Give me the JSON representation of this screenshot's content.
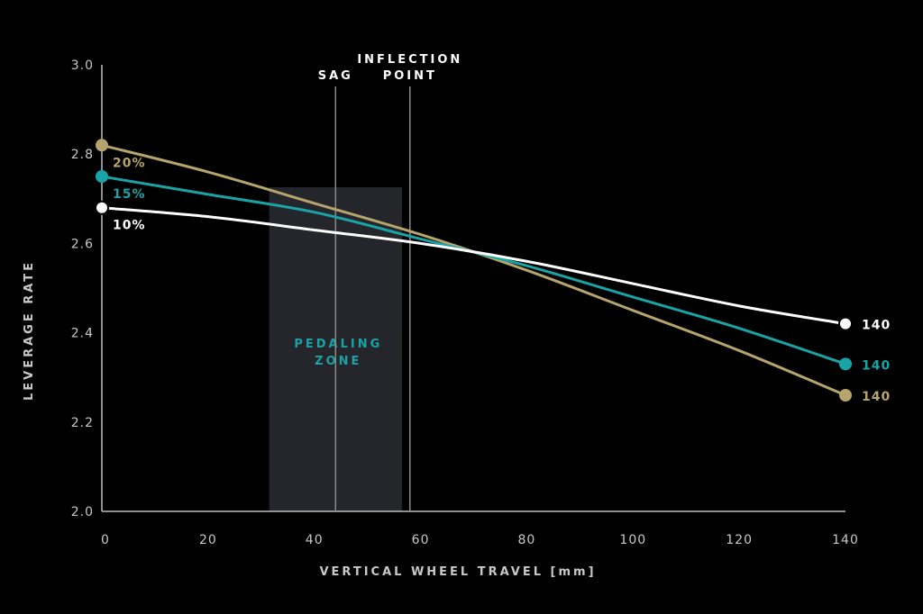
{
  "chart_data": {
    "type": "line",
    "xlabel": "VERTICAL WHEEL TRAVEL [mm]",
    "ylabel": "LEVERAGE RATE",
    "xlim": [
      0,
      140
    ],
    "ylim": [
      2.0,
      3.0
    ],
    "x_ticks": [
      "0",
      "20",
      "40",
      "60",
      "80",
      "100",
      "120",
      "140"
    ],
    "y_ticks": [
      "2.0",
      "2.2",
      "2.4",
      "2.6",
      "2.8",
      "3.0"
    ],
    "grid": false,
    "x": [
      0,
      20,
      40,
      60,
      80,
      100,
      120,
      140
    ],
    "series": [
      {
        "name": "10%",
        "end_label": "140",
        "color": "#ffffff",
        "values": [
          2.68,
          2.66,
          2.63,
          2.6,
          2.56,
          2.51,
          2.46,
          2.42
        ]
      },
      {
        "name": "15%",
        "end_label": "140",
        "color": "#1aa3a6",
        "values": [
          2.75,
          2.71,
          2.67,
          2.61,
          2.55,
          2.48,
          2.41,
          2.33
        ]
      },
      {
        "name": "20%",
        "end_label": "140",
        "color": "#b5a46c",
        "values": [
          2.82,
          2.76,
          2.69,
          2.62,
          2.54,
          2.45,
          2.36,
          2.26
        ]
      }
    ],
    "shaded_region": {
      "label_lines": [
        "PEDALING",
        "ZONE"
      ],
      "x_range": [
        31.5,
        56.5
      ],
      "label_color": "#1aa3a6"
    },
    "vertical_markers": [
      {
        "label_lines": [
          "SAG"
        ],
        "x": 44
      },
      {
        "label_lines": [
          "INFLECTION",
          "POINT"
        ],
        "x": 58
      }
    ]
  }
}
